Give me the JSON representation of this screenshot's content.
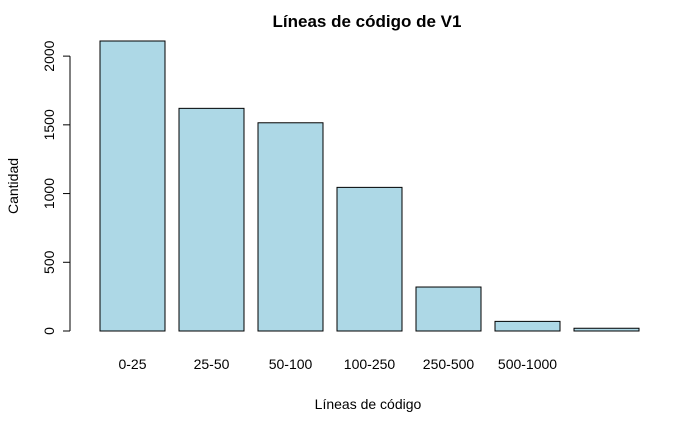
{
  "chart_data": {
    "type": "bar",
    "title": "Líneas de código de V1",
    "xlabel": "Líneas de código",
    "ylabel": "Cantidad",
    "categories": [
      "0-25",
      "25-50",
      "50-100",
      "100-250",
      "250-500",
      "500-1000",
      ""
    ],
    "values": [
      2110,
      1620,
      1515,
      1045,
      320,
      70,
      20
    ],
    "yticks": [
      0,
      500,
      1000,
      1500,
      2000
    ],
    "ylim": [
      0,
      2110
    ],
    "grid": false,
    "legend": false,
    "colors": {
      "bar_fill": "#add8e6",
      "bar_stroke": "#000000"
    }
  }
}
